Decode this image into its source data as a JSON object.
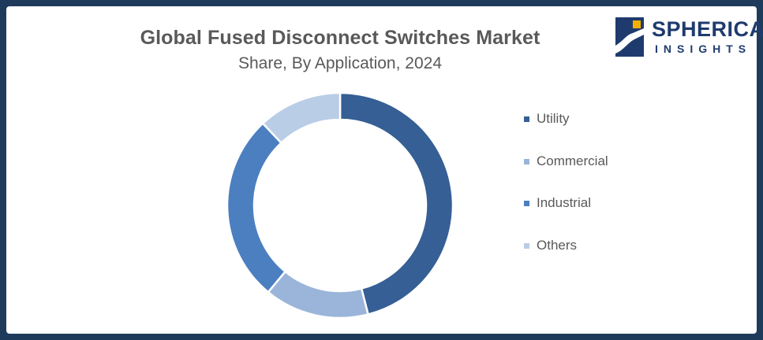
{
  "header": {
    "title": "Global Fused Disconnect Switches Market",
    "subtitle": "Share, By Application, 2024"
  },
  "logo": {
    "word1": "SPHERICAL",
    "word2": "INSIGHTS",
    "color": "#1f3b6e",
    "icon": "spherical-insights-logo-icon"
  },
  "chart_data": {
    "type": "pie",
    "donut": true,
    "categories": [
      "Utility",
      "Commercial",
      "Industrial",
      "Others"
    ],
    "values": [
      46,
      15,
      27,
      12
    ],
    "colors": [
      "#355f95",
      "#9ab5d9",
      "#4b7fc0",
      "#b9cde6"
    ],
    "legend": "right"
  }
}
